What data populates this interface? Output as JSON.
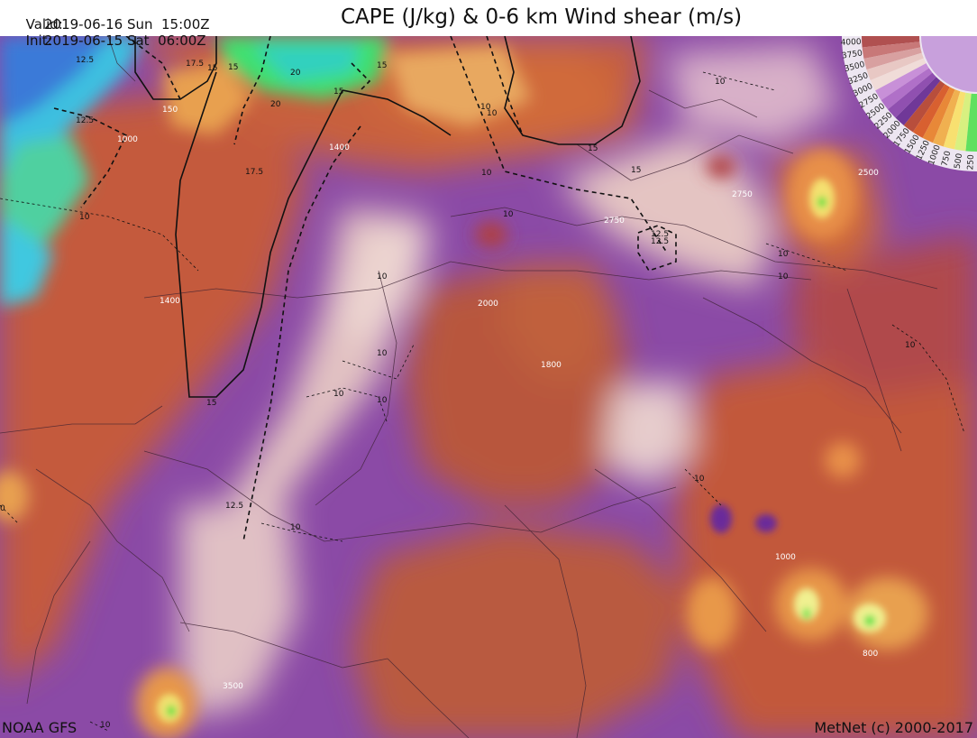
{
  "header": {
    "valid_label": "Valid:",
    "valid_value": "2019-06-16 Sun  15:00Z",
    "init_label": "Init:",
    "init_value": "2019-06-15 Sat  06:00Z",
    "title": "CAPE (J/kg) & 0-6 km Wind shear (m/s)"
  },
  "footer": {
    "model": "NOAA GFS",
    "credit": "MetNet (c) 2000-2017"
  },
  "cape_labels": [
    "150",
    "1000",
    "1400",
    "1400",
    "2000",
    "1800",
    "2750",
    "2750",
    "2500",
    "1000",
    "800",
    "3500"
  ],
  "shear_labels": [
    "12.5",
    "12.5",
    "12.5",
    "12.5",
    "12.5",
    "15",
    "15",
    "15",
    "15",
    "15",
    "15",
    "15",
    "17.5",
    "17.5",
    "20",
    "20",
    "10",
    "10",
    "10",
    "10",
    "10",
    "10",
    "10",
    "10",
    "10",
    "10",
    "10",
    "10",
    "10",
    "10",
    "10",
    "10",
    "0"
  ],
  "legend": {
    "values": [
      "4000",
      "3750",
      "3500",
      "3250",
      "3000",
      "2750",
      "2500",
      "2250",
      "2000",
      "1750",
      "1500",
      "1250",
      "1000",
      "750",
      "500",
      "250"
    ],
    "colors": [
      "#b05050",
      "#c87878",
      "#d8a0a0",
      "#e8c8c4",
      "#f0dcd8",
      "#c890d8",
      "#b070c8",
      "#9050b0",
      "#703898",
      "#b84e3c",
      "#d86030",
      "#e88838",
      "#f0b050",
      "#f8e070",
      "#d8f080",
      "#60e060"
    ]
  },
  "colors": {
    "base_purple": "#8a4aa8",
    "orange": "#c8573a",
    "pink": "#e4c0c0",
    "green": "#40e040",
    "cyan": "#40c8e0"
  }
}
